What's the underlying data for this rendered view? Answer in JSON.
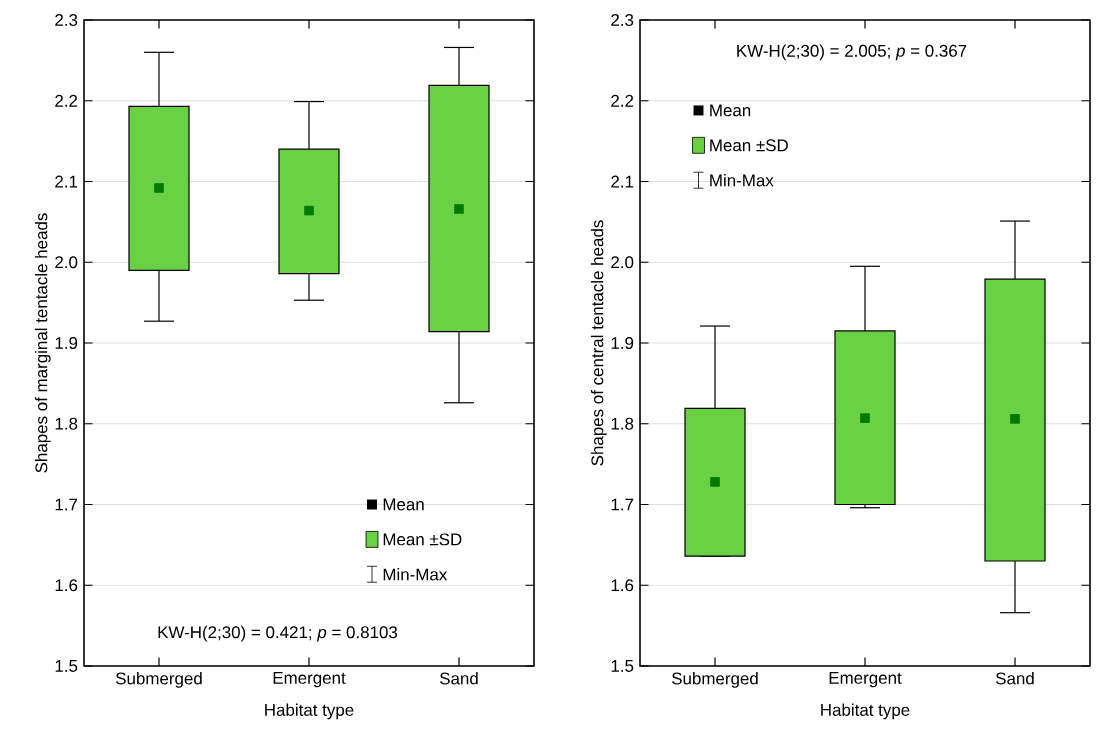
{
  "chart_data": [
    {
      "type": "box",
      "ylabel": "Shapes of marginal tentacle heads",
      "xlabel": "Habitat type",
      "categories": [
        "Submerged",
        "Emergent",
        "Sand"
      ],
      "series": [
        {
          "color": "#6ad044",
          "boxes": [
            {
              "low": 1.927,
              "q1": 1.99,
              "q3": 2.193,
              "high": 2.26,
              "mean": 2.092
            },
            {
              "low": 1.953,
              "q1": 1.986,
              "q3": 2.14,
              "high": 2.199,
              "mean": 2.064
            },
            {
              "low": 1.826,
              "q1": 1.914,
              "q3": 2.219,
              "high": 2.266,
              "mean": 2.066
            }
          ]
        }
      ],
      "ylim": [
        1.5,
        2.3
      ],
      "yticks": [
        1.5,
        1.6,
        1.7,
        1.8,
        1.9,
        {
          "value": 2,
          "label": "2.0"
        },
        2.1,
        2.2,
        2.3
      ],
      "grid": "y",
      "annotations": [
        "KW-H(2;30) = 0.421; *p* = 0.8103",
        "Mean",
        "Mean ±SD",
        "Min-Max"
      ]
    },
    {
      "type": "box",
      "ylabel": "Shapes of central tentacle heads",
      "xlabel": "Habitat type",
      "categories": [
        "Submerged",
        "Emergent",
        "Sand"
      ],
      "series": [
        {
          "color": "#6ad044",
          "boxes": [
            {
              "low": 1.636,
              "q1": 1.636,
              "q3": 1.819,
              "high": 1.921,
              "mean": 1.728
            },
            {
              "low": 1.696,
              "q1": 1.7,
              "q3": 1.915,
              "high": 1.995,
              "mean": 1.807
            },
            {
              "low": 1.566,
              "q1": 1.63,
              "q3": 1.979,
              "high": 2.051,
              "mean": 1.806
            }
          ]
        }
      ],
      "ylim": [
        1.5,
        2.3
      ],
      "yticks": [
        1.5,
        1.6,
        1.7,
        1.8,
        1.9,
        {
          "value": 2,
          "label": "2.0"
        },
        2.1,
        2.2,
        2.3
      ],
      "grid": "y",
      "annotations": [
        "KW-H(2;30) = 2.005; *p* = 0.367",
        "Mean",
        "Mean ±SD",
        "Min-Max"
      ]
    }
  ]
}
